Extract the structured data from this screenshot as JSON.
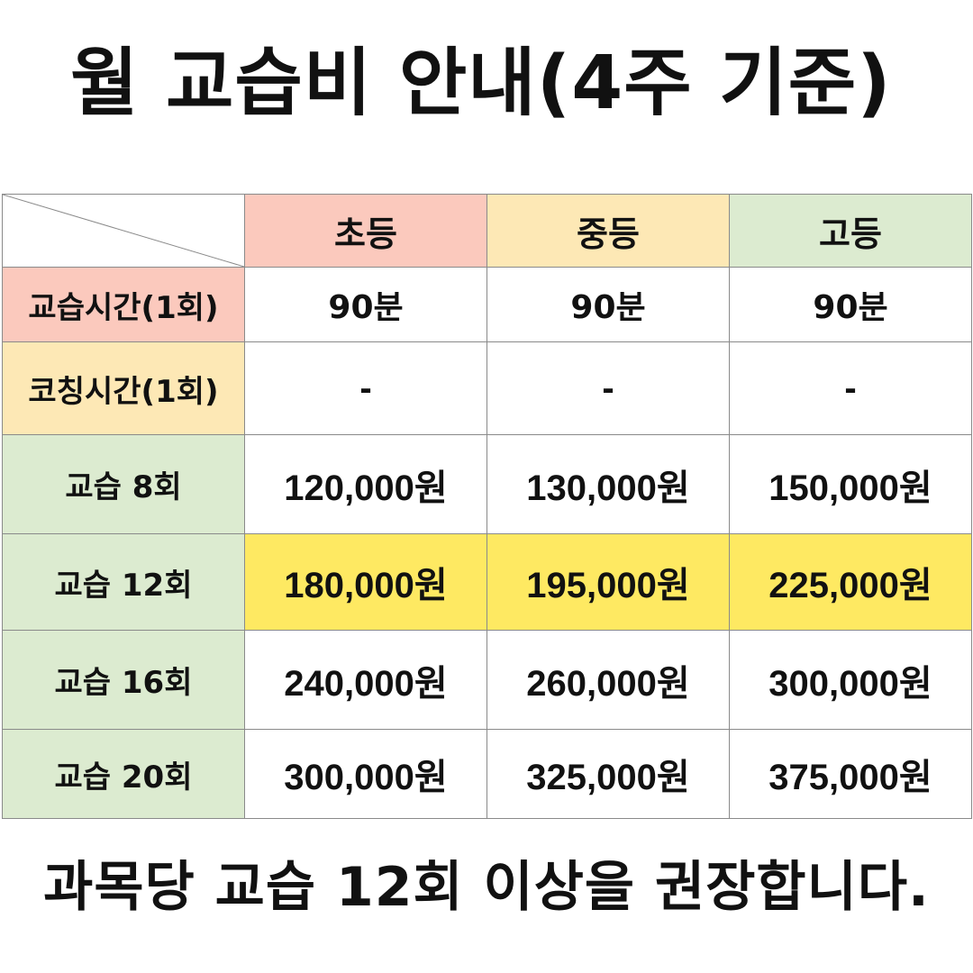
{
  "title": "월 교습비 안내(4주 기준)",
  "table": {
    "columns": [
      "초등",
      "중등",
      "고등"
    ],
    "rows": [
      {
        "label": "교습시간(1회)",
        "values": [
          "90분",
          "90분",
          "90분"
        ]
      },
      {
        "label": "코칭시간(1회)",
        "values": [
          "-",
          "-",
          "-"
        ]
      },
      {
        "label": "교습 8회",
        "values": [
          "120,000원",
          "130,000원",
          "150,000원"
        ]
      },
      {
        "label": "교습 12회",
        "values": [
          "180,000원",
          "195,000원",
          "225,000원"
        ]
      },
      {
        "label": "교습 16회",
        "values": [
          "240,000원",
          "260,000원",
          "300,000원"
        ]
      },
      {
        "label": "교습 20회",
        "values": [
          "300,000원",
          "325,000원",
          "375,000원"
        ]
      }
    ]
  },
  "footer": "과목당 교습 12회 이상을 권장합니다.",
  "colors": {
    "elementary_header": "#fbc9bd",
    "middle_header": "#fde8b5",
    "high_header": "#dcebd0",
    "highlight_row": "#fee962",
    "border": "#8a8a8a"
  }
}
